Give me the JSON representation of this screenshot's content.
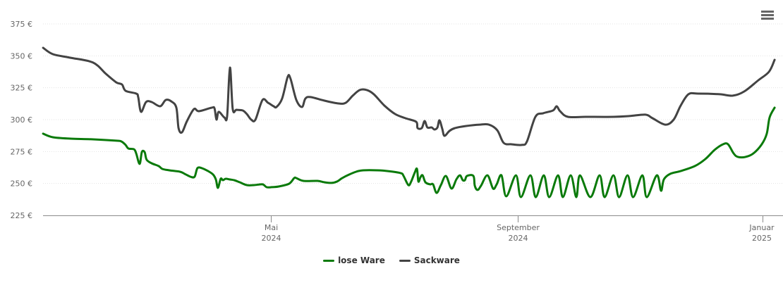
{
  "chart_data": {
    "type": "line",
    "title": "",
    "x_unit": "days since 2024-05-01",
    "xlim": [
      -113.5,
      251
    ],
    "ylim": [
      225,
      375
    ],
    "y_ticks": [
      225,
      250,
      275,
      300,
      325,
      350,
      375
    ],
    "y_tick_labels": [
      "225 €",
      "250 €",
      "275 €",
      "300 €",
      "325 €",
      "350 €",
      "375 €"
    ],
    "x_ticks": [
      {
        "day": 0,
        "label": "Mai",
        "year": "2024"
      },
      {
        "day": 123,
        "label": "September",
        "year": "2024"
      },
      {
        "day": 245,
        "label": "Januar",
        "year": "2025"
      }
    ],
    "grid": true,
    "legend_position": "bottom-center",
    "series": [
      {
        "name": "lose Ware",
        "color": "#0a7a0a",
        "points": [
          [
            -113.5,
            289.0
          ],
          [
            -108.6,
            286.2
          ],
          [
            -99.8,
            285.1
          ],
          [
            -89.3,
            284.6
          ],
          [
            -77.0,
            283.5
          ],
          [
            -74.5,
            282.9
          ],
          [
            -72.4,
            280.2
          ],
          [
            -71.0,
            277.4
          ],
          [
            -68.2,
            276.8
          ],
          [
            -67.1,
            273.5
          ],
          [
            -65.4,
            265.3
          ],
          [
            -64.3,
            274.6
          ],
          [
            -62.9,
            274.6
          ],
          [
            -61.9,
            268.6
          ],
          [
            -59.4,
            265.8
          ],
          [
            -55.9,
            263.6
          ],
          [
            -54.1,
            261.4
          ],
          [
            -50.6,
            260.3
          ],
          [
            -45.3,
            259.2
          ],
          [
            -42.9,
            257.5
          ],
          [
            -40.1,
            255.3
          ],
          [
            -38.0,
            255.3
          ],
          [
            -36.6,
            262.0
          ],
          [
            -34.4,
            262.0
          ],
          [
            -31.3,
            259.7
          ],
          [
            -28.8,
            257.0
          ],
          [
            -27.4,
            253.1
          ],
          [
            -26.4,
            246.5
          ],
          [
            -25.0,
            253.7
          ],
          [
            -23.9,
            252.6
          ],
          [
            -22.5,
            253.7
          ],
          [
            -20.4,
            253.1
          ],
          [
            -18.3,
            252.6
          ],
          [
            -15.5,
            250.9
          ],
          [
            -12.0,
            248.7
          ],
          [
            -8.4,
            248.7
          ],
          [
            -4.2,
            249.3
          ],
          [
            -2.1,
            247.1
          ],
          [
            0.4,
            247.1
          ],
          [
            3.9,
            247.6
          ],
          [
            9.1,
            249.8
          ],
          [
            11.6,
            254.2
          ],
          [
            12.7,
            254.2
          ],
          [
            16.2,
            252.0
          ],
          [
            23.2,
            252.0
          ],
          [
            26.7,
            250.9
          ],
          [
            30.2,
            250.4
          ],
          [
            33.0,
            251.5
          ],
          [
            35.5,
            254.2
          ],
          [
            39.0,
            257.0
          ],
          [
            42.5,
            259.2
          ],
          [
            46.0,
            260.3
          ],
          [
            53.1,
            260.3
          ],
          [
            58.3,
            259.7
          ],
          [
            64.7,
            258.1
          ],
          [
            66.1,
            255.9
          ],
          [
            68.5,
            248.7
          ],
          [
            69.9,
            251.5
          ],
          [
            71.7,
            258.6
          ],
          [
            72.8,
            261.4
          ],
          [
            73.5,
            251.5
          ],
          [
            74.5,
            254.8
          ],
          [
            75.6,
            256.4
          ],
          [
            77.0,
            250.9
          ],
          [
            79.4,
            249.3
          ],
          [
            80.8,
            249.3
          ],
          [
            82.6,
            242.6
          ],
          [
            84.7,
            248.7
          ],
          [
            87.2,
            255.9
          ],
          [
            90.0,
            246.0
          ],
          [
            92.4,
            253.1
          ],
          [
            94.2,
            256.4
          ],
          [
            95.6,
            252.6
          ],
          [
            96.7,
            252.6
          ],
          [
            97.7,
            255.9
          ],
          [
            100.9,
            255.9
          ],
          [
            101.6,
            248.2
          ],
          [
            103.0,
            244.9
          ],
          [
            104.7,
            248.2
          ],
          [
            107.9,
            256.4
          ],
          [
            110.7,
            246.0
          ],
          [
            112.5,
            249.3
          ],
          [
            114.9,
            256.4
          ],
          [
            117.3,
            239.9
          ],
          [
            122.1,
            256.4
          ],
          [
            124.6,
            239.3
          ],
          [
            129.3,
            256.4
          ],
          [
            132.0,
            239.3
          ],
          [
            136.0,
            256.4
          ],
          [
            138.7,
            239.3
          ],
          [
            143.1,
            256.4
          ],
          [
            145.5,
            239.3
          ],
          [
            149.4,
            256.4
          ],
          [
            152.2,
            239.3
          ],
          [
            154.0,
            256.4
          ],
          [
            159.2,
            239.3
          ],
          [
            163.8,
            256.4
          ],
          [
            166.3,
            239.3
          ],
          [
            170.7,
            256.4
          ],
          [
            173.5,
            239.3
          ],
          [
            177.7,
            256.4
          ],
          [
            180.5,
            239.3
          ],
          [
            185.1,
            256.4
          ],
          [
            187.3,
            239.3
          ],
          [
            192.3,
            256.4
          ],
          [
            194.4,
            244.3
          ],
          [
            195.8,
            253.1
          ],
          [
            198.9,
            257.5
          ],
          [
            204.2,
            259.7
          ],
          [
            211.2,
            263.6
          ],
          [
            216.5,
            269.1
          ],
          [
            221.1,
            276.3
          ],
          [
            225.3,
            280.7
          ],
          [
            227.8,
            280.7
          ],
          [
            230.6,
            273.5
          ],
          [
            232.7,
            270.8
          ],
          [
            236.6,
            270.8
          ],
          [
            240.4,
            273.5
          ],
          [
            244.6,
            280.7
          ],
          [
            247.1,
            289.0
          ],
          [
            248.5,
            301.7
          ],
          [
            251.0,
            309.4
          ]
        ]
      },
      {
        "name": "Sackware",
        "color": "#434343",
        "points": [
          [
            -113.5,
            356.3
          ],
          [
            -108.6,
            351.3
          ],
          [
            -99.8,
            348.5
          ],
          [
            -88.6,
            344.7
          ],
          [
            -82.2,
            335.9
          ],
          [
            -77.0,
            329.2
          ],
          [
            -74.2,
            327.6
          ],
          [
            -72.4,
            322.6
          ],
          [
            -67.1,
            320.4
          ],
          [
            -66.1,
            317.7
          ],
          [
            -64.7,
            306.1
          ],
          [
            -62.2,
            313.8
          ],
          [
            -59.4,
            313.8
          ],
          [
            -55.2,
            310.5
          ],
          [
            -52.4,
            315.4
          ],
          [
            -49.6,
            314.3
          ],
          [
            -47.1,
            309.4
          ],
          [
            -46.0,
            293.4
          ],
          [
            -44.3,
            290.1
          ],
          [
            -41.8,
            298.9
          ],
          [
            -38.3,
            308.3
          ],
          [
            -35.9,
            306.6
          ],
          [
            -29.5,
            309.4
          ],
          [
            -28.1,
            308.8
          ],
          [
            -27.1,
            300.0
          ],
          [
            -26.0,
            306.1
          ],
          [
            -23.2,
            301.7
          ],
          [
            -21.8,
            302.8
          ],
          [
            -20.4,
            340.8
          ],
          [
            -19.0,
            308.3
          ],
          [
            -17.2,
            307.7
          ],
          [
            -14.1,
            307.2
          ],
          [
            -12.0,
            304.4
          ],
          [
            -9.8,
            300.0
          ],
          [
            -7.7,
            300.0
          ],
          [
            -4.2,
            315.4
          ],
          [
            -1.4,
            313.2
          ],
          [
            1.4,
            310.5
          ],
          [
            2.8,
            309.9
          ],
          [
            5.6,
            316.5
          ],
          [
            8.4,
            333.6
          ],
          [
            9.8,
            332.0
          ],
          [
            12.7,
            315.4
          ],
          [
            15.5,
            309.9
          ],
          [
            17.2,
            316.5
          ],
          [
            19.7,
            317.7
          ],
          [
            26.7,
            314.9
          ],
          [
            33.7,
            312.7
          ],
          [
            37.3,
            313.2
          ],
          [
            40.8,
            318.8
          ],
          [
            44.3,
            323.2
          ],
          [
            47.8,
            323.2
          ],
          [
            51.3,
            319.9
          ],
          [
            56.6,
            311.0
          ],
          [
            61.9,
            304.4
          ],
          [
            67.1,
            301.1
          ],
          [
            72.4,
            298.3
          ],
          [
            73.1,
            293.4
          ],
          [
            75.2,
            293.4
          ],
          [
            76.6,
            298.9
          ],
          [
            78.0,
            293.9
          ],
          [
            80.1,
            293.9
          ],
          [
            81.5,
            292.3
          ],
          [
            83.0,
            293.9
          ],
          [
            84.0,
            299.5
          ],
          [
            85.4,
            292.8
          ],
          [
            86.5,
            287.3
          ],
          [
            89.0,
            291.2
          ],
          [
            91.7,
            293.4
          ],
          [
            97.0,
            295.0
          ],
          [
            104.0,
            296.1
          ],
          [
            108.6,
            296.1
          ],
          [
            112.8,
            291.7
          ],
          [
            116.0,
            281.8
          ],
          [
            119.9,
            280.7
          ],
          [
            125.1,
            280.2
          ],
          [
            127.6,
            282.9
          ],
          [
            131.8,
            302.2
          ],
          [
            135.7,
            305.0
          ],
          [
            140.6,
            307.2
          ],
          [
            142.4,
            310.5
          ],
          [
            144.1,
            306.6
          ],
          [
            148.0,
            302.2
          ],
          [
            156.8,
            302.2
          ],
          [
            170.8,
            302.2
          ],
          [
            178.6,
            302.8
          ],
          [
            186.6,
            303.9
          ],
          [
            190.2,
            301.1
          ],
          [
            196.5,
            296.1
          ],
          [
            200.7,
            300.0
          ],
          [
            204.2,
            311.0
          ],
          [
            208.1,
            319.9
          ],
          [
            213.0,
            320.4
          ],
          [
            223.6,
            319.9
          ],
          [
            230.2,
            318.8
          ],
          [
            235.9,
            322.1
          ],
          [
            242.9,
            330.9
          ],
          [
            248.2,
            337.5
          ],
          [
            251.0,
            346.9
          ]
        ]
      }
    ]
  },
  "legend": {
    "items": [
      "lose Ware",
      "Sackware"
    ]
  },
  "menu": {
    "icon": "hamburger-menu-icon"
  }
}
